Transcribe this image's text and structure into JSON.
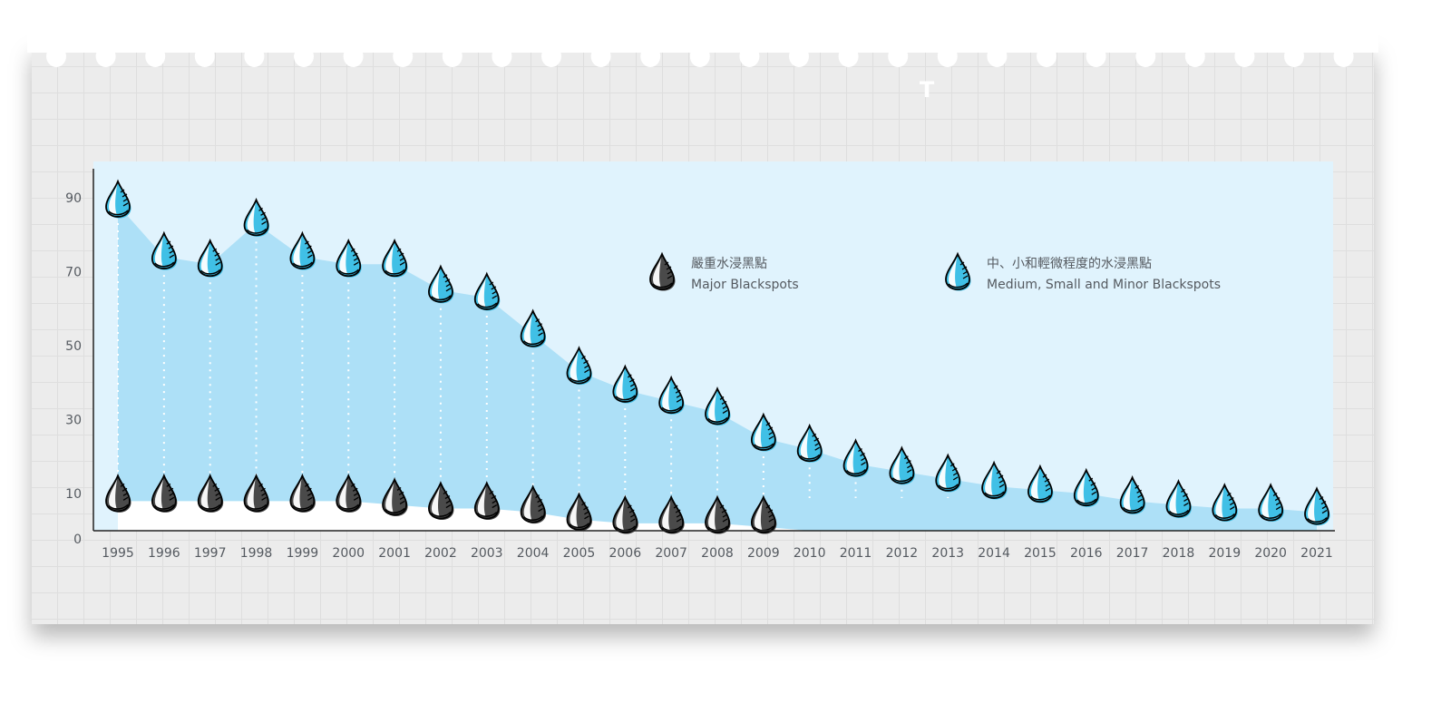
{
  "stray_mark": "T",
  "chart_data": {
    "type": "area",
    "title": "",
    "xlabel": "",
    "ylabel": "",
    "categories": [
      "1995",
      "1996",
      "1997",
      "1998",
      "1999",
      "2000",
      "2001",
      "2002",
      "2003",
      "2004",
      "2005",
      "2006",
      "2007",
      "2008",
      "2009",
      "2010",
      "2011",
      "2012",
      "2013",
      "2014",
      "2015",
      "2016",
      "2017",
      "2018",
      "2019",
      "2020",
      "2021"
    ],
    "y_ticks": [
      "0",
      "10",
      "30",
      "50",
      "70",
      "90"
    ],
    "ylim": [
      0,
      98
    ],
    "grid": false,
    "legend_position": "top-right",
    "series": [
      {
        "name": "中、小和輕微程度的水浸黑點 Medium, Small and Minor Blackspots",
        "legend_zh": "中、小和輕微程度的水浸黑點",
        "legend_en": "Medium, Small and Minor Blackspots",
        "color": "#40c0e6",
        "area_color": "#ade0f7",
        "values": [
          88,
          74,
          72,
          83,
          74,
          72,
          72,
          65,
          63,
          53,
          43,
          38,
          35,
          32,
          25,
          22,
          18,
          16,
          14,
          12,
          11,
          10,
          8,
          7,
          6,
          6,
          5
        ]
      },
      {
        "name": "嚴重水浸黑點 Major Blackspots",
        "legend_zh": "嚴重水浸黑點",
        "legend_en": "Major Blackspots",
        "color": "#4a4a4a",
        "area_color": "#ffffff",
        "values": [
          8,
          8,
          8,
          8,
          8,
          8,
          7,
          6,
          6,
          5,
          3,
          2,
          2,
          2,
          1,
          0,
          0,
          0,
          0,
          0,
          0,
          0,
          0,
          0,
          0,
          0,
          0
        ]
      }
    ],
    "plot_background": "#e0f3fd",
    "paper_color": "#ececec"
  }
}
